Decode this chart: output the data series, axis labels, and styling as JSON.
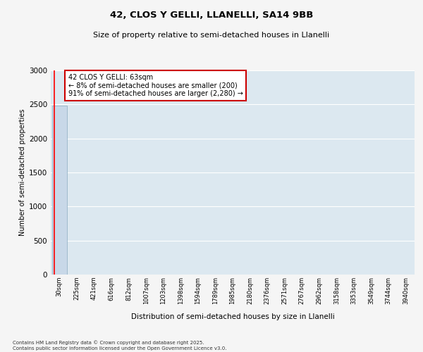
{
  "title": "42, CLOS Y GELLI, LLANELLI, SA14 9BB",
  "subtitle": "Size of property relative to semi-detached houses in Llanelli",
  "xlabel": "Distribution of semi-detached houses by size in Llanelli",
  "ylabel": "Number of semi-detached properties",
  "bin_labels": [
    "30sqm",
    "225sqm",
    "421sqm",
    "616sqm",
    "812sqm",
    "1007sqm",
    "1203sqm",
    "1398sqm",
    "1594sqm",
    "1789sqm",
    "1985sqm",
    "2180sqm",
    "2376sqm",
    "2571sqm",
    "2767sqm",
    "2962sqm",
    "3158sqm",
    "3353sqm",
    "3549sqm",
    "3744sqm",
    "3940sqm"
  ],
  "bar_values": [
    2480,
    5,
    2,
    1,
    0,
    0,
    0,
    0,
    0,
    0,
    0,
    0,
    0,
    0,
    0,
    0,
    0,
    0,
    0,
    0,
    0
  ],
  "bar_color": "#c8d8e8",
  "bar_edge_color": "#8aaabf",
  "property_label": "42 CLOS Y GELLI: 63sqm",
  "pct_smaller": 8,
  "n_smaller": "200",
  "pct_larger": 91,
  "n_larger": "2,280",
  "annotation_box_color": "#ffffff",
  "annotation_box_edge_color": "#cc0000",
  "bg_color": "#dce8f0",
  "grid_color": "#ffffff",
  "fig_bg_color": "#f5f5f5",
  "footer_line1": "Contains HM Land Registry data © Crown copyright and database right 2025.",
  "footer_line2": "Contains public sector information licensed under the Open Government Licence v3.0.",
  "ylim": [
    0,
    3000
  ],
  "yticks": [
    0,
    500,
    1000,
    1500,
    2000,
    2500,
    3000
  ]
}
